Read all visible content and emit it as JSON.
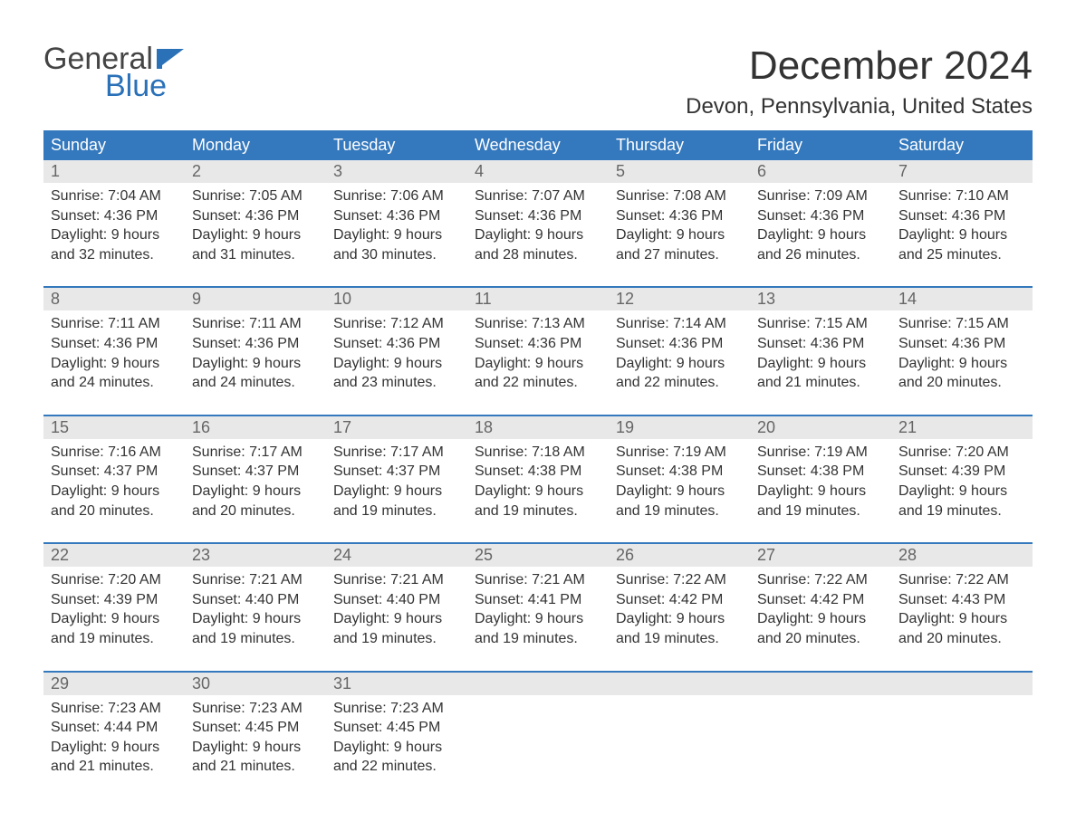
{
  "logo": {
    "word1": "General",
    "word2": "Blue"
  },
  "title": "December 2024",
  "location": "Devon, Pennsylvania, United States",
  "colors": {
    "header_bg": "#3478bd",
    "header_text": "#ffffff",
    "daynum_bg": "#e8e8e8",
    "daynum_text": "#666666",
    "body_text": "#333333",
    "accent": "#2a71b8",
    "week_border": "#3478bd",
    "page_bg": "#ffffff"
  },
  "day_headers": [
    "Sunday",
    "Monday",
    "Tuesday",
    "Wednesday",
    "Thursday",
    "Friday",
    "Saturday"
  ],
  "weeks": [
    [
      {
        "n": "1",
        "sunrise": "Sunrise: 7:04 AM",
        "sunset": "Sunset: 4:36 PM",
        "d1": "Daylight: 9 hours",
        "d2": "and 32 minutes."
      },
      {
        "n": "2",
        "sunrise": "Sunrise: 7:05 AM",
        "sunset": "Sunset: 4:36 PM",
        "d1": "Daylight: 9 hours",
        "d2": "and 31 minutes."
      },
      {
        "n": "3",
        "sunrise": "Sunrise: 7:06 AM",
        "sunset": "Sunset: 4:36 PM",
        "d1": "Daylight: 9 hours",
        "d2": "and 30 minutes."
      },
      {
        "n": "4",
        "sunrise": "Sunrise: 7:07 AM",
        "sunset": "Sunset: 4:36 PM",
        "d1": "Daylight: 9 hours",
        "d2": "and 28 minutes."
      },
      {
        "n": "5",
        "sunrise": "Sunrise: 7:08 AM",
        "sunset": "Sunset: 4:36 PM",
        "d1": "Daylight: 9 hours",
        "d2": "and 27 minutes."
      },
      {
        "n": "6",
        "sunrise": "Sunrise: 7:09 AM",
        "sunset": "Sunset: 4:36 PM",
        "d1": "Daylight: 9 hours",
        "d2": "and 26 minutes."
      },
      {
        "n": "7",
        "sunrise": "Sunrise: 7:10 AM",
        "sunset": "Sunset: 4:36 PM",
        "d1": "Daylight: 9 hours",
        "d2": "and 25 minutes."
      }
    ],
    [
      {
        "n": "8",
        "sunrise": "Sunrise: 7:11 AM",
        "sunset": "Sunset: 4:36 PM",
        "d1": "Daylight: 9 hours",
        "d2": "and 24 minutes."
      },
      {
        "n": "9",
        "sunrise": "Sunrise: 7:11 AM",
        "sunset": "Sunset: 4:36 PM",
        "d1": "Daylight: 9 hours",
        "d2": "and 24 minutes."
      },
      {
        "n": "10",
        "sunrise": "Sunrise: 7:12 AM",
        "sunset": "Sunset: 4:36 PM",
        "d1": "Daylight: 9 hours",
        "d2": "and 23 minutes."
      },
      {
        "n": "11",
        "sunrise": "Sunrise: 7:13 AM",
        "sunset": "Sunset: 4:36 PM",
        "d1": "Daylight: 9 hours",
        "d2": "and 22 minutes."
      },
      {
        "n": "12",
        "sunrise": "Sunrise: 7:14 AM",
        "sunset": "Sunset: 4:36 PM",
        "d1": "Daylight: 9 hours",
        "d2": "and 22 minutes."
      },
      {
        "n": "13",
        "sunrise": "Sunrise: 7:15 AM",
        "sunset": "Sunset: 4:36 PM",
        "d1": "Daylight: 9 hours",
        "d2": "and 21 minutes."
      },
      {
        "n": "14",
        "sunrise": "Sunrise: 7:15 AM",
        "sunset": "Sunset: 4:36 PM",
        "d1": "Daylight: 9 hours",
        "d2": "and 20 minutes."
      }
    ],
    [
      {
        "n": "15",
        "sunrise": "Sunrise: 7:16 AM",
        "sunset": "Sunset: 4:37 PM",
        "d1": "Daylight: 9 hours",
        "d2": "and 20 minutes."
      },
      {
        "n": "16",
        "sunrise": "Sunrise: 7:17 AM",
        "sunset": "Sunset: 4:37 PM",
        "d1": "Daylight: 9 hours",
        "d2": "and 20 minutes."
      },
      {
        "n": "17",
        "sunrise": "Sunrise: 7:17 AM",
        "sunset": "Sunset: 4:37 PM",
        "d1": "Daylight: 9 hours",
        "d2": "and 19 minutes."
      },
      {
        "n": "18",
        "sunrise": "Sunrise: 7:18 AM",
        "sunset": "Sunset: 4:38 PM",
        "d1": "Daylight: 9 hours",
        "d2": "and 19 minutes."
      },
      {
        "n": "19",
        "sunrise": "Sunrise: 7:19 AM",
        "sunset": "Sunset: 4:38 PM",
        "d1": "Daylight: 9 hours",
        "d2": "and 19 minutes."
      },
      {
        "n": "20",
        "sunrise": "Sunrise: 7:19 AM",
        "sunset": "Sunset: 4:38 PM",
        "d1": "Daylight: 9 hours",
        "d2": "and 19 minutes."
      },
      {
        "n": "21",
        "sunrise": "Sunrise: 7:20 AM",
        "sunset": "Sunset: 4:39 PM",
        "d1": "Daylight: 9 hours",
        "d2": "and 19 minutes."
      }
    ],
    [
      {
        "n": "22",
        "sunrise": "Sunrise: 7:20 AM",
        "sunset": "Sunset: 4:39 PM",
        "d1": "Daylight: 9 hours",
        "d2": "and 19 minutes."
      },
      {
        "n": "23",
        "sunrise": "Sunrise: 7:21 AM",
        "sunset": "Sunset: 4:40 PM",
        "d1": "Daylight: 9 hours",
        "d2": "and 19 minutes."
      },
      {
        "n": "24",
        "sunrise": "Sunrise: 7:21 AM",
        "sunset": "Sunset: 4:40 PM",
        "d1": "Daylight: 9 hours",
        "d2": "and 19 minutes."
      },
      {
        "n": "25",
        "sunrise": "Sunrise: 7:21 AM",
        "sunset": "Sunset: 4:41 PM",
        "d1": "Daylight: 9 hours",
        "d2": "and 19 minutes."
      },
      {
        "n": "26",
        "sunrise": "Sunrise: 7:22 AM",
        "sunset": "Sunset: 4:42 PM",
        "d1": "Daylight: 9 hours",
        "d2": "and 19 minutes."
      },
      {
        "n": "27",
        "sunrise": "Sunrise: 7:22 AM",
        "sunset": "Sunset: 4:42 PM",
        "d1": "Daylight: 9 hours",
        "d2": "and 20 minutes."
      },
      {
        "n": "28",
        "sunrise": "Sunrise: 7:22 AM",
        "sunset": "Sunset: 4:43 PM",
        "d1": "Daylight: 9 hours",
        "d2": "and 20 minutes."
      }
    ],
    [
      {
        "n": "29",
        "sunrise": "Sunrise: 7:23 AM",
        "sunset": "Sunset: 4:44 PM",
        "d1": "Daylight: 9 hours",
        "d2": "and 21 minutes."
      },
      {
        "n": "30",
        "sunrise": "Sunrise: 7:23 AM",
        "sunset": "Sunset: 4:45 PM",
        "d1": "Daylight: 9 hours",
        "d2": "and 21 minutes."
      },
      {
        "n": "31",
        "sunrise": "Sunrise: 7:23 AM",
        "sunset": "Sunset: 4:45 PM",
        "d1": "Daylight: 9 hours",
        "d2": "and 22 minutes."
      },
      null,
      null,
      null,
      null
    ]
  ]
}
